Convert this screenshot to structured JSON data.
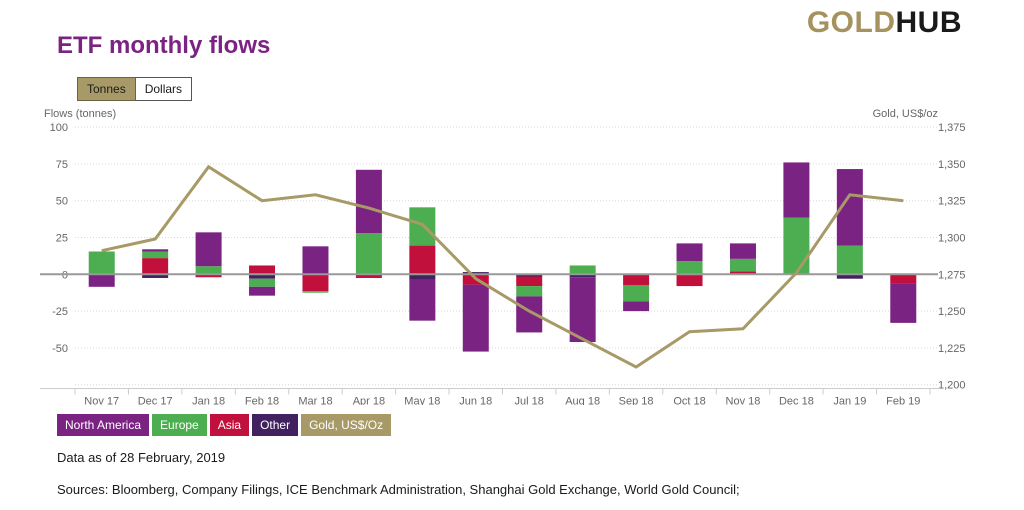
{
  "brand": {
    "gold": "GOLD",
    "hub": "HUB"
  },
  "title": "ETF monthly flows",
  "toggle": {
    "options": [
      {
        "label": "Tonnes",
        "active": true
      },
      {
        "label": "Dollars",
        "active": false
      }
    ]
  },
  "chart_data": {
    "type": "bar",
    "title": "ETF monthly flows",
    "left_axis": {
      "title": "Flows (tonnes)",
      "ticks": [
        100,
        75,
        50,
        25,
        0,
        -25,
        -50
      ],
      "range": [
        -75,
        100
      ]
    },
    "right_axis": {
      "title": "Gold, US$/oz",
      "ticks": [
        "1,375",
        "1,350",
        "1,325",
        "1,300",
        "1,275",
        "1,250",
        "1,225",
        "1,200"
      ],
      "range": [
        1375,
        1200
      ]
    },
    "categories": [
      "Nov 17",
      "Dec 17",
      "Jan 18",
      "Feb 18",
      "Mar 18",
      "Apr 18",
      "May 18",
      "Jun 18",
      "Jul 18",
      "Aug 18",
      "Sep 18",
      "Oct 18",
      "Nov 18",
      "Dec 18",
      "Jan 19",
      "Feb 19"
    ],
    "series": [
      {
        "name": "North America",
        "type": "column",
        "color": "#7b2382",
        "values": [
          -8.5,
          1.5,
          23,
          -6,
          19,
          43,
          -28,
          -45.5,
          -24.5,
          -44,
          -6.5,
          12,
          10.5,
          37.5,
          52,
          -27
        ]
      },
      {
        "name": "Europe",
        "type": "column",
        "color": "#4cae50",
        "values": [
          15.5,
          4.5,
          5.5,
          -5.5,
          -1,
          28,
          26,
          0,
          -7,
          6,
          -11,
          9,
          8.5,
          38.5,
          19.5,
          0
        ]
      },
      {
        "name": "Asia",
        "type": "column",
        "color": "#c2103c",
        "values": [
          0,
          11,
          -2,
          6,
          -11.5,
          -2.5,
          19.5,
          -7,
          -6.5,
          0,
          -7.5,
          -8,
          2,
          0,
          0,
          -6
        ]
      },
      {
        "name": "Other",
        "type": "column",
        "color": "#41215f",
        "values": [
          0,
          -2.5,
          0,
          -3,
          0,
          0,
          -3.5,
          1.5,
          -1.5,
          -2,
          0,
          0,
          0,
          0,
          -3,
          0
        ]
      },
      {
        "name": "Gold, US$/Oz",
        "type": "line",
        "color": "#a79a66",
        "values": [
          1291,
          1299,
          1348,
          1325,
          1329,
          1320,
          1309,
          1272,
          1250,
          1231,
          1212,
          1236,
          1238,
          1276,
          1329,
          1325
        ]
      }
    ],
    "stack_order_from_zero": [
      "Other",
      "Asia",
      "Europe",
      "North America"
    ],
    "grid": "dotted horizontal",
    "legend_position": "bottom-left"
  },
  "footer": {
    "data_as_of": "Data as of 28 February, 2019",
    "sources": "Sources: Bloomberg, Company Filings, ICE Benchmark Administration, Shanghai Gold Exchange, World Gold Council;"
  }
}
